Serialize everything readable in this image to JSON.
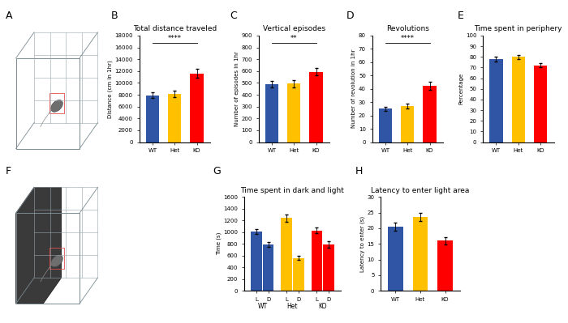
{
  "diagram_panels": [
    "A",
    "F"
  ],
  "chart_data": [
    {
      "panel": "B",
      "type": "bar",
      "title": "Total distance traveled",
      "y_label": "Distance (cm in 1hr)",
      "categories": [
        "WT",
        "Het",
        "KO"
      ],
      "values": [
        7900,
        8200,
        11600
      ],
      "errors": [
        500,
        550,
        750
      ],
      "colors": [
        "#2f55a4",
        "#ffc000",
        "#ff0000"
      ],
      "ylim": [
        0,
        18000
      ],
      "yticks": [
        0,
        2000,
        4000,
        6000,
        8000,
        10000,
        12000,
        14000,
        16000,
        18000
      ],
      "annotation": "****"
    },
    {
      "panel": "C",
      "type": "bar",
      "title": "Vertical episodes",
      "y_label": "Number of episodes in 1hr",
      "categories": [
        "WT",
        "Het",
        "KO"
      ],
      "values": [
        490,
        495,
        595
      ],
      "errors": [
        25,
        30,
        30
      ],
      "colors": [
        "#2f55a4",
        "#ffc000",
        "#ff0000"
      ],
      "ylim": [
        0,
        900
      ],
      "yticks": [
        0,
        100,
        200,
        300,
        400,
        500,
        600,
        700,
        800,
        900
      ],
      "annotation": "**"
    },
    {
      "panel": "D",
      "type": "bar",
      "title": "Revolutions",
      "y_label": "Number of revolution in 1hr",
      "categories": [
        "WT",
        "Het",
        "KO"
      ],
      "values": [
        25,
        27,
        42
      ],
      "errors": [
        1.5,
        2,
        3
      ],
      "colors": [
        "#2f55a4",
        "#ffc000",
        "#ff0000"
      ],
      "ylim": [
        0,
        80
      ],
      "yticks": [
        0,
        10,
        20,
        30,
        40,
        50,
        60,
        70,
        80
      ],
      "annotation": "****"
    },
    {
      "panel": "E",
      "type": "bar",
      "title": "Time spent in periphery",
      "y_label": "Percentage",
      "categories": [
        "WT",
        "Het",
        "KO"
      ],
      "values": [
        78,
        80,
        72
      ],
      "errors": [
        2.5,
        2,
        2
      ],
      "colors": [
        "#2f55a4",
        "#ffc000",
        "#ff0000"
      ],
      "ylim": [
        0,
        100
      ],
      "yticks": [
        0,
        10,
        20,
        30,
        40,
        50,
        60,
        70,
        80,
        90,
        100
      ]
    },
    {
      "panel": "G",
      "type": "grouped_bar",
      "title": "Time spent in dark and light",
      "y_label": "Time (s)",
      "categories": [
        "WT",
        "Het",
        "KO"
      ],
      "series": [
        {
          "name": "L",
          "values": [
            1010,
            1240,
            1030
          ],
          "errors": [
            40,
            60,
            50
          ]
        },
        {
          "name": "D",
          "values": [
            790,
            560,
            790
          ],
          "errors": [
            40,
            40,
            50
          ]
        }
      ],
      "colors": [
        "#2f55a4",
        "#ffc000",
        "#ff0000"
      ],
      "ylim": [
        0,
        1600
      ],
      "yticks": [
        0,
        200,
        400,
        600,
        800,
        1000,
        1200,
        1400,
        1600
      ]
    },
    {
      "panel": "H",
      "type": "bar",
      "title": "Latency to enter light area",
      "y_label": "Latency to enter (s)",
      "categories": [
        "WT",
        "Het",
        "KO"
      ],
      "values": [
        20.5,
        23.5,
        16
      ],
      "errors": [
        1.2,
        1.3,
        1.2
      ],
      "colors": [
        "#2f55a4",
        "#ffc000",
        "#ff0000"
      ],
      "ylim": [
        0,
        30
      ],
      "yticks": [
        0,
        5,
        10,
        15,
        20,
        25,
        30
      ]
    }
  ]
}
